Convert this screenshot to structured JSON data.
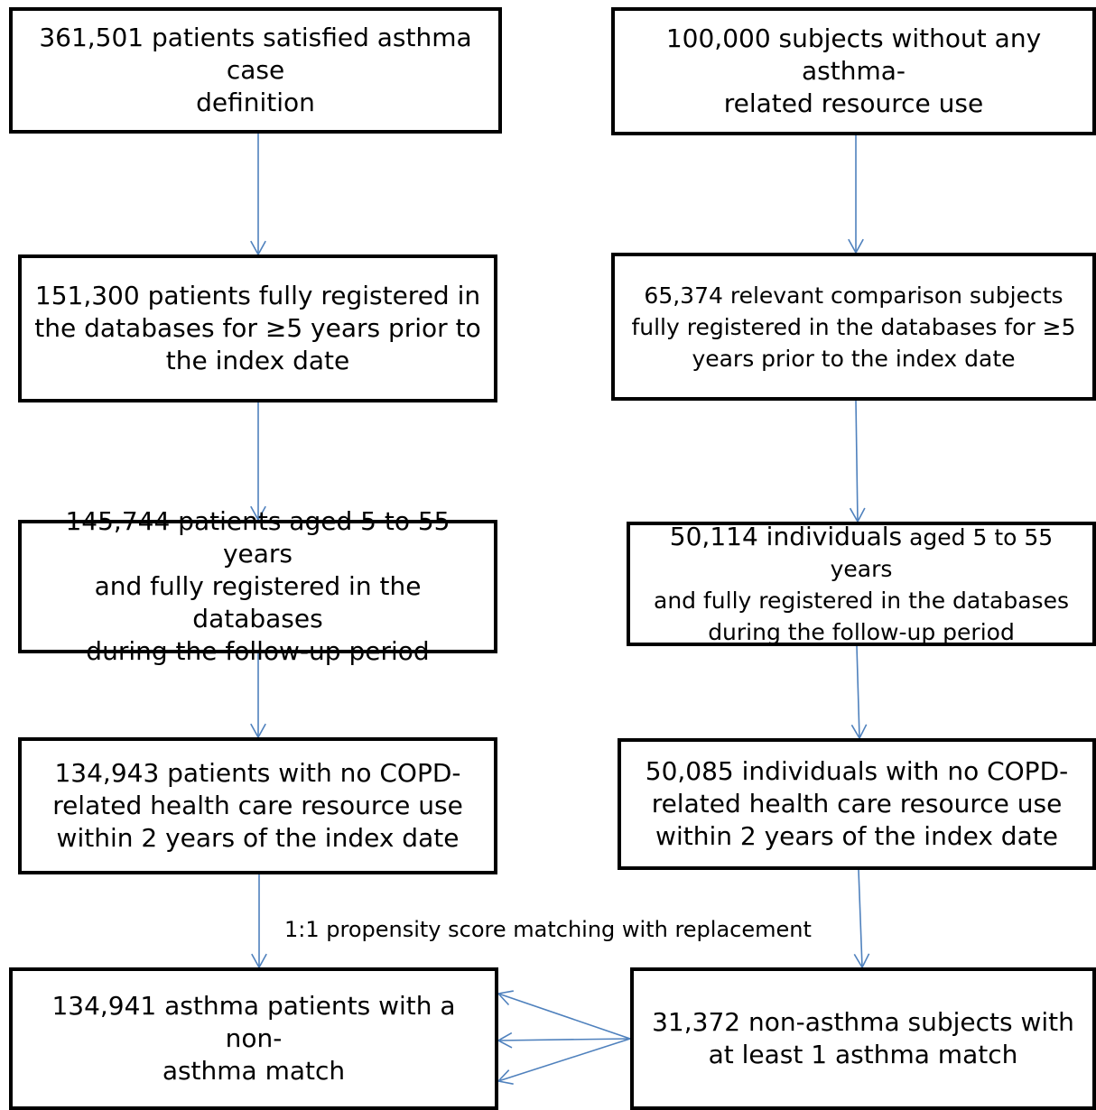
{
  "colors": {
    "box_border": "#000000",
    "arrow": "#4f81bd",
    "text": "#000000",
    "background": "#ffffff"
  },
  "left_column": [
    {
      "text": "361,501 patients satisfied asthma case\ndefinition"
    },
    {
      "text": "151,300 patients fully registered in\nthe databases for ≥5 years prior to\nthe index date"
    },
    {
      "text": "145,744 patients aged 5 to 55 years\nand fully registered in the databases\nduring the follow-up period"
    },
    {
      "text": "134,943 patients with no COPD-\nrelated health care resource use\nwithin 2 years of the index date"
    },
    {
      "text": "134,941 asthma patients with a non-\nasthma match"
    }
  ],
  "right_column": [
    {
      "text": "100,000 subjects without any asthma-\nrelated resource use"
    },
    {
      "text": "65,374 relevant comparison subjects\nfully registered in the databases for ≥5\nyears prior to the index date"
    },
    {
      "text_lead": "50,114 individuals",
      "text_rest": " aged 5 to 55 years\nand fully registered in the databases\nduring the follow-up period"
    },
    {
      "text": "50,085 individuals with no COPD-\nrelated health care resource use\nwithin 2 years of the index date"
    },
    {
      "text": "31,372 non-asthma subjects with\nat least 1 asthma match"
    }
  ],
  "matching_label": "1:1 propensity score matching with replacement"
}
